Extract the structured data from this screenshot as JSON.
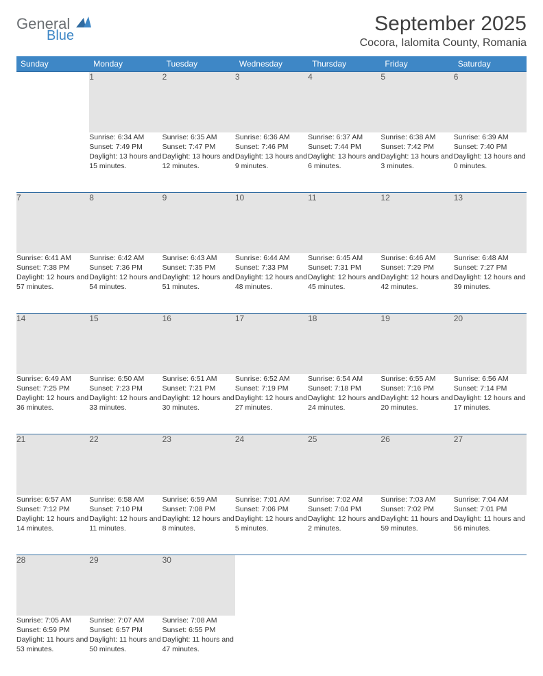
{
  "logo": {
    "line1": "General",
    "line2": "Blue"
  },
  "title": "September 2025",
  "location": "Cocora, Ialomita County, Romania",
  "colors": {
    "header_bg": "#3e87c6",
    "header_text": "#ffffff",
    "daynum_bg": "#e4e4e4",
    "daynum_text": "#595959",
    "row_border": "#2f6aa0",
    "body_text": "#333333",
    "logo_gray": "#6b6f73",
    "logo_blue": "#3e87c6"
  },
  "day_headers": [
    "Sunday",
    "Monday",
    "Tuesday",
    "Wednesday",
    "Thursday",
    "Friday",
    "Saturday"
  ],
  "weeks": [
    {
      "nums": [
        "",
        "1",
        "2",
        "3",
        "4",
        "5",
        "6"
      ],
      "cells": [
        "",
        "Sunrise: 6:34 AM\nSunset: 7:49 PM\nDaylight: 13 hours and 15 minutes.",
        "Sunrise: 6:35 AM\nSunset: 7:47 PM\nDaylight: 13 hours and 12 minutes.",
        "Sunrise: 6:36 AM\nSunset: 7:46 PM\nDaylight: 13 hours and 9 minutes.",
        "Sunrise: 6:37 AM\nSunset: 7:44 PM\nDaylight: 13 hours and 6 minutes.",
        "Sunrise: 6:38 AM\nSunset: 7:42 PM\nDaylight: 13 hours and 3 minutes.",
        "Sunrise: 6:39 AM\nSunset: 7:40 PM\nDaylight: 13 hours and 0 minutes."
      ]
    },
    {
      "nums": [
        "7",
        "8",
        "9",
        "10",
        "11",
        "12",
        "13"
      ],
      "cells": [
        "Sunrise: 6:41 AM\nSunset: 7:38 PM\nDaylight: 12 hours and 57 minutes.",
        "Sunrise: 6:42 AM\nSunset: 7:36 PM\nDaylight: 12 hours and 54 minutes.",
        "Sunrise: 6:43 AM\nSunset: 7:35 PM\nDaylight: 12 hours and 51 minutes.",
        "Sunrise: 6:44 AM\nSunset: 7:33 PM\nDaylight: 12 hours and 48 minutes.",
        "Sunrise: 6:45 AM\nSunset: 7:31 PM\nDaylight: 12 hours and 45 minutes.",
        "Sunrise: 6:46 AM\nSunset: 7:29 PM\nDaylight: 12 hours and 42 minutes.",
        "Sunrise: 6:48 AM\nSunset: 7:27 PM\nDaylight: 12 hours and 39 minutes."
      ]
    },
    {
      "nums": [
        "14",
        "15",
        "16",
        "17",
        "18",
        "19",
        "20"
      ],
      "cells": [
        "Sunrise: 6:49 AM\nSunset: 7:25 PM\nDaylight: 12 hours and 36 minutes.",
        "Sunrise: 6:50 AM\nSunset: 7:23 PM\nDaylight: 12 hours and 33 minutes.",
        "Sunrise: 6:51 AM\nSunset: 7:21 PM\nDaylight: 12 hours and 30 minutes.",
        "Sunrise: 6:52 AM\nSunset: 7:19 PM\nDaylight: 12 hours and 27 minutes.",
        "Sunrise: 6:54 AM\nSunset: 7:18 PM\nDaylight: 12 hours and 24 minutes.",
        "Sunrise: 6:55 AM\nSunset: 7:16 PM\nDaylight: 12 hours and 20 minutes.",
        "Sunrise: 6:56 AM\nSunset: 7:14 PM\nDaylight: 12 hours and 17 minutes."
      ]
    },
    {
      "nums": [
        "21",
        "22",
        "23",
        "24",
        "25",
        "26",
        "27"
      ],
      "cells": [
        "Sunrise: 6:57 AM\nSunset: 7:12 PM\nDaylight: 12 hours and 14 minutes.",
        "Sunrise: 6:58 AM\nSunset: 7:10 PM\nDaylight: 12 hours and 11 minutes.",
        "Sunrise: 6:59 AM\nSunset: 7:08 PM\nDaylight: 12 hours and 8 minutes.",
        "Sunrise: 7:01 AM\nSunset: 7:06 PM\nDaylight: 12 hours and 5 minutes.",
        "Sunrise: 7:02 AM\nSunset: 7:04 PM\nDaylight: 12 hours and 2 minutes.",
        "Sunrise: 7:03 AM\nSunset: 7:02 PM\nDaylight: 11 hours and 59 minutes.",
        "Sunrise: 7:04 AM\nSunset: 7:01 PM\nDaylight: 11 hours and 56 minutes."
      ]
    },
    {
      "nums": [
        "28",
        "29",
        "30",
        "",
        "",
        "",
        ""
      ],
      "cells": [
        "Sunrise: 7:05 AM\nSunset: 6:59 PM\nDaylight: 11 hours and 53 minutes.",
        "Sunrise: 7:07 AM\nSunset: 6:57 PM\nDaylight: 11 hours and 50 minutes.",
        "Sunrise: 7:08 AM\nSunset: 6:55 PM\nDaylight: 11 hours and 47 minutes.",
        "",
        "",
        "",
        ""
      ]
    }
  ]
}
